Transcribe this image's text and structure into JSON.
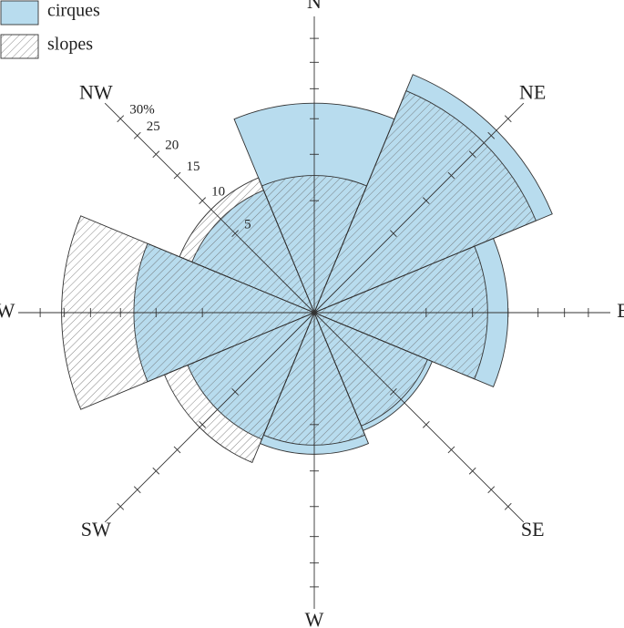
{
  "chart_data": {
    "type": "polar-bar",
    "categories": [
      "N",
      "NE",
      "E",
      "SE",
      "W",
      "SW",
      "W",
      "NW"
    ],
    "series": [
      {
        "name": "cirques",
        "color": "#b8dcee",
        "values": [
          17.5,
          26.5,
          15,
          6.5,
          8,
          7.5,
          13,
          7
        ]
      },
      {
        "name": "slopes",
        "color": "#666666",
        "pattern": "hatch",
        "values": [
          7.5,
          23,
          12,
          6,
          7,
          10.5,
          25.5,
          8.5
        ]
      }
    ],
    "rscale": "sqrt",
    "rlim": [
      0,
      35
    ],
    "rticks": [
      5,
      10,
      15,
      20,
      25,
      {
        "value": 30,
        "label": "30%"
      }
    ]
  }
}
